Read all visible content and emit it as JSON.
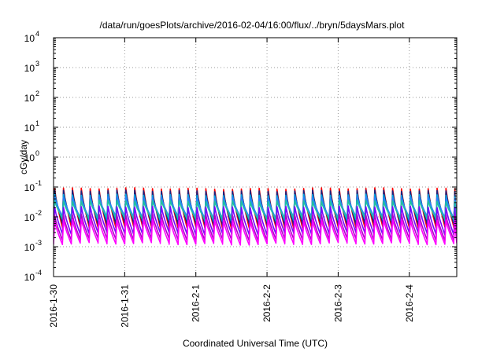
{
  "chart_data": {
    "type": "line",
    "title": "/data/run/goesPlots/archive/2016-02-04/16:00/flux/../bryn/5daysMars.plot",
    "xlabel": "Coordinated Universal Time (UTC)",
    "ylabel": "cGy/day",
    "yscale": "log",
    "ylim": [
      0.0001,
      10000
    ],
    "xlim": [
      "2016-01-30T00:00",
      "2016-02-04T16:00"
    ],
    "grid": true,
    "x_tick_labels": [
      "2016-1-30",
      "2016-1-31",
      "2016-2-1",
      "2016-2-2",
      "2016-2-3",
      "2016-2-4"
    ],
    "y_ticks": [
      {
        "base": "10",
        "exp": "-4",
        "value": 0.0001
      },
      {
        "base": "10",
        "exp": "-3",
        "value": 0.001
      },
      {
        "base": "10",
        "exp": "-2",
        "value": 0.01
      },
      {
        "base": "10",
        "exp": "-1",
        "value": 0.1
      },
      {
        "base": "10",
        "exp": "0",
        "value": 1
      },
      {
        "base": "10",
        "exp": "1",
        "value": 10
      },
      {
        "base": "10",
        "exp": "2",
        "value": 100
      },
      {
        "base": "10",
        "exp": "3",
        "value": 1000
      },
      {
        "base": "10",
        "exp": "4",
        "value": 10000
      }
    ],
    "period_hours": 3,
    "series": [
      {
        "color": "#ff0000",
        "peak": 0.09,
        "trough": 0.0045
      },
      {
        "color": "#1a237e",
        "peak": 0.075,
        "trough": 0.006
      },
      {
        "color": "#00a8e0",
        "peak": 0.055,
        "trough": 0.008
      },
      {
        "color": "#2a7fff",
        "peak": 0.045,
        "trough": 0.01
      },
      {
        "color": "#20c0a0",
        "peak": 0.035,
        "trough": 0.009
      },
      {
        "color": "#7a00ff",
        "peak": 0.022,
        "trough": 0.0028
      },
      {
        "color": "#b000c8",
        "peak": 0.012,
        "trough": 0.0018
      },
      {
        "color": "#ff00ff",
        "peak": 0.008,
        "trough": 0.0013
      }
    ]
  }
}
